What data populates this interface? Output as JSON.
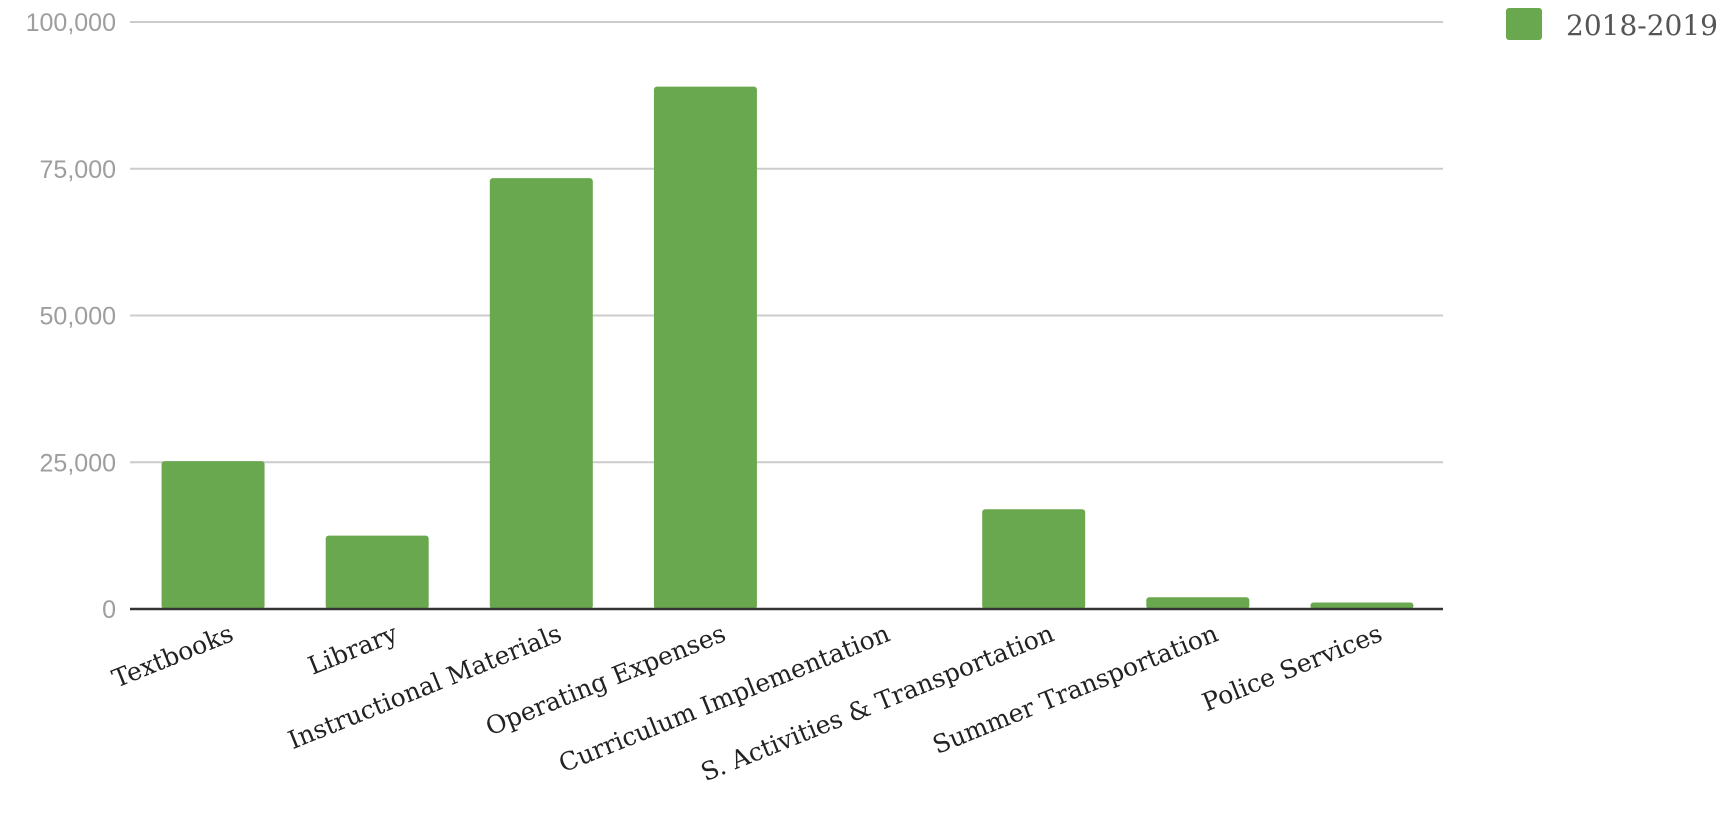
{
  "chart_data": {
    "type": "bar",
    "categories": [
      "Textbooks",
      "Library",
      "Instructional Materials",
      "Operating Expenses",
      "Curriculum Implementation",
      "S. Activities & Transportation",
      "Summer Transportation",
      "Police Services"
    ],
    "series": [
      {
        "name": "2018-2019",
        "values": [
          25200,
          12500,
          73400,
          89000,
          0,
          17000,
          2000,
          1100
        ],
        "color": "#6aa84f"
      }
    ],
    "ylim": [
      0,
      100000
    ],
    "yticks": [
      0,
      25000,
      50000,
      75000,
      100000
    ],
    "ytick_labels": [
      "0",
      "25,000",
      "50,000",
      "75,000",
      "100,000"
    ],
    "grid": true,
    "legend_position": "top-right"
  }
}
